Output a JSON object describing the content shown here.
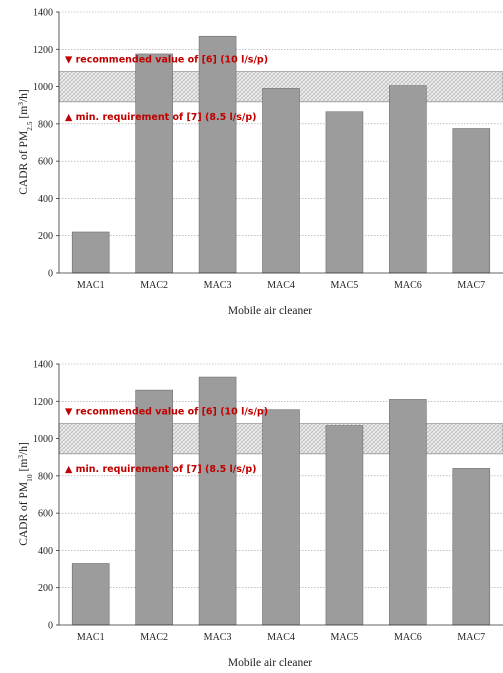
{
  "chart_data": [
    {
      "type": "bar",
      "categories": [
        "MAC1",
        "MAC2",
        "MAC3",
        "MAC4",
        "MAC5",
        "MAC6",
        "MAC7"
      ],
      "values": [
        220,
        1175,
        1270,
        990,
        865,
        1005,
        775
      ],
      "ylabel_main": "CADR of PM",
      "ylabel_sub": "2.5",
      "ylabel_unit_pre": " [m",
      "ylabel_unit_sup": "3",
      "ylabel_unit_post": "/h]",
      "xlabel": "Mobile air cleaner",
      "ylim": [
        0,
        1400
      ],
      "yticks": [
        0,
        200,
        400,
        600,
        800,
        1000,
        1200,
        1400
      ],
      "grid": true,
      "band": {
        "low": 918,
        "high": 1080
      },
      "annotations": {
        "recommended": "▼ recommended value of [6] (10 l/s/p)",
        "minimum": "▲ min. requirement of [7] (8.5 l/s/p)"
      }
    },
    {
      "type": "bar",
      "categories": [
        "MAC1",
        "MAC2",
        "MAC3",
        "MAC4",
        "MAC5",
        "MAC6",
        "MAC7"
      ],
      "values": [
        330,
        1260,
        1330,
        1155,
        1070,
        1210,
        840
      ],
      "ylabel_main": "CADR of PM",
      "ylabel_sub": "10",
      "ylabel_unit_pre": " [m",
      "ylabel_unit_sup": "3",
      "ylabel_unit_post": "/h]",
      "xlabel": "Mobile air cleaner",
      "ylim": [
        0,
        1400
      ],
      "yticks": [
        0,
        200,
        400,
        600,
        800,
        1000,
        1200,
        1400
      ],
      "grid": true,
      "band": {
        "low": 918,
        "high": 1080
      },
      "annotations": {
        "recommended": "▼ recommended value of [6] (10 l/s/p)",
        "minimum": "▲ min. requirement of [7] (8.5 l/s/p)"
      }
    }
  ],
  "colors": {
    "bar": "#9c9c9c",
    "annotation": "#c00000"
  }
}
